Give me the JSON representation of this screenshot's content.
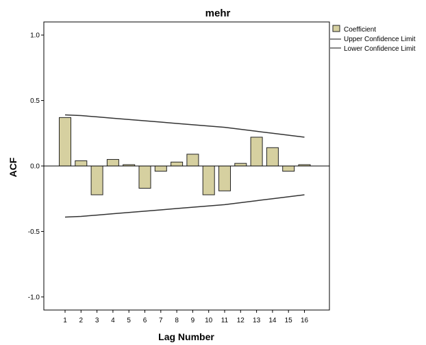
{
  "chart_data": {
    "type": "bar",
    "title": "mehr",
    "xlabel": "Lag Number",
    "ylabel": "ACF",
    "categories": [
      "1",
      "2",
      "3",
      "4",
      "5",
      "6",
      "7",
      "8",
      "9",
      "10",
      "11",
      "12",
      "13",
      "14",
      "15",
      "16"
    ],
    "series": [
      {
        "name": "Coefficient",
        "values": [
          0.37,
          0.04,
          -0.22,
          0.05,
          0.01,
          -0.17,
          -0.04,
          0.03,
          0.09,
          -0.22,
          -0.19,
          0.02,
          0.22,
          0.14,
          -0.04,
          0.01
        ]
      }
    ],
    "upper_confidence_limit": [
      0.39,
      0.385,
      0.375,
      0.365,
      0.355,
      0.345,
      0.335,
      0.325,
      0.315,
      0.305,
      0.295,
      0.28,
      0.265,
      0.25,
      0.235,
      0.22
    ],
    "lower_confidence_limit": [
      -0.39,
      -0.385,
      -0.375,
      -0.365,
      -0.355,
      -0.345,
      -0.335,
      -0.325,
      -0.315,
      -0.305,
      -0.295,
      -0.28,
      -0.265,
      -0.25,
      -0.235,
      -0.22
    ],
    "ylim": [
      -1.1,
      1.1
    ],
    "yticks": [
      "1.0",
      "0.5",
      "0.0",
      "-0.5",
      "-1.0"
    ],
    "ytick_values": [
      1.0,
      0.5,
      0.0,
      -0.5,
      -1.0
    ],
    "legend": {
      "placement": "top-right",
      "entries": [
        "Coefficient",
        "Upper Confidence Limit",
        "Lower Confidence Limit"
      ]
    },
    "grid": false,
    "colors": {
      "bar_fill": "#d6d0a0",
      "bar_stroke": "#222222",
      "limit_line": "#333333",
      "background": "#ffffff"
    }
  }
}
